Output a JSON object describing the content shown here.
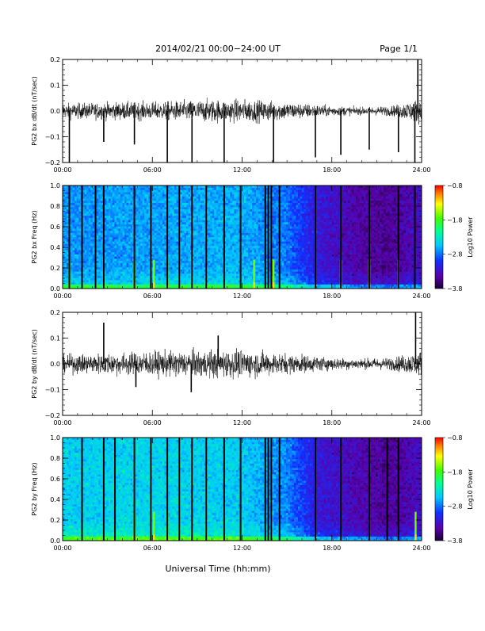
{
  "header": {
    "title": "2014/02/21   00:00−24:00  UT",
    "page": "Page 1/1"
  },
  "x_axis_title": "Universal Time (hh:mm)",
  "colors": {
    "trace": "#000000",
    "spectrogram_low": "#1a0033",
    "spectrogram_high": "#ff0000"
  },
  "chart_data": [
    {
      "type": "line",
      "id": "bx_timeseries",
      "ylabel": "PG2 bx dB/dt (nT/sec)",
      "xlim_hours": [
        0,
        24
      ],
      "ylim": [
        -0.2,
        0.2
      ],
      "xticks": [
        "00:00",
        "06:00",
        "12:00",
        "18:00",
        "24:00"
      ],
      "yticks": [
        "0.2",
        "0.1",
        "0.0",
        "−0.1",
        "−0.2"
      ],
      "ytick_values": [
        0.2,
        0.1,
        0.0,
        -0.1,
        -0.2
      ],
      "envelope_hours": [
        0,
        2,
        4,
        6,
        8,
        10,
        12,
        14,
        16,
        18,
        20,
        22,
        24
      ],
      "envelope_amplitude": [
        0.03,
        0.032,
        0.035,
        0.035,
        0.04,
        0.045,
        0.045,
        0.04,
        0.03,
        0.02,
        0.015,
        0.02,
        0.05
      ],
      "spike_hours": [
        0.45,
        2.75,
        4.8,
        7.0,
        8.65,
        10.8,
        14.1,
        16.9,
        18.6,
        20.5,
        22.45,
        23.55,
        23.75
      ],
      "spike_levels": [
        -0.2,
        -0.12,
        -0.13,
        -0.2,
        -0.2,
        -0.2,
        -0.2,
        -0.18,
        -0.17,
        -0.15,
        -0.16,
        -0.2,
        0.2
      ]
    },
    {
      "type": "heatmap",
      "id": "bx_spectrogram",
      "ylabel": "PG2 bx Freq (Hz)",
      "xlim_hours": [
        0,
        24
      ],
      "ylim": [
        0,
        1.0
      ],
      "xticks": [
        "00:00",
        "06:00",
        "12:00",
        "18:00",
        "24:00"
      ],
      "yticks": [
        "1.0",
        "0.8",
        "0.6",
        "0.4",
        "0.2",
        "0.0"
      ],
      "ytick_values": [
        1.0,
        0.8,
        0.6,
        0.4,
        0.2,
        0.0
      ],
      "colorbar": {
        "label": "Log10 Power",
        "ticks": [
          "−0.8",
          "−1.8",
          "−2.8",
          "−3.8"
        ],
        "tick_values": [
          -0.8,
          -1.8,
          -2.8,
          -3.8
        ],
        "range": [
          -3.8,
          -0.8
        ]
      },
      "gap_hours": [
        0.45,
        1.3,
        2.2,
        2.75,
        4.8,
        5.9,
        7.0,
        7.8,
        8.65,
        9.6,
        10.8,
        11.9,
        13.55,
        13.75,
        13.95,
        14.5,
        16.9,
        18.6,
        20.5,
        22.45,
        23.55
      ],
      "spike_hours": [
        0.45,
        2.75,
        4.8,
        6.1,
        7.0,
        8.65,
        10.8,
        12.8,
        14.1,
        18.6,
        20.5,
        22.45
      ],
      "background_profile_hours": [
        0,
        6,
        12,
        15,
        17,
        20,
        22,
        24
      ],
      "background_profile_power": [
        -2.7,
        -2.65,
        -2.6,
        -2.8,
        -3.2,
        -3.45,
        -3.5,
        -3.3
      ]
    },
    {
      "type": "line",
      "id": "by_timeseries",
      "ylabel": "PG2 by dB/dt (nT/sec)",
      "xlim_hours": [
        0,
        24
      ],
      "ylim": [
        -0.2,
        0.2
      ],
      "xticks": [
        "00:00",
        "06:00",
        "12:00",
        "18:00",
        "24:00"
      ],
      "yticks": [
        "0.2",
        "0.1",
        "0.0",
        "−0.1",
        "−0.2"
      ],
      "ytick_values": [
        0.2,
        0.1,
        0.0,
        -0.1,
        -0.2
      ],
      "envelope_hours": [
        0,
        2,
        4,
        6,
        8,
        10,
        12,
        14,
        16,
        18,
        20,
        22,
        24
      ],
      "envelope_amplitude": [
        0.035,
        0.04,
        0.045,
        0.05,
        0.05,
        0.055,
        0.055,
        0.045,
        0.035,
        0.025,
        0.02,
        0.025,
        0.05
      ],
      "spike_hours": [
        2.75,
        4.9,
        8.6,
        10.4,
        23.6
      ],
      "spike_levels": [
        0.16,
        -0.09,
        -0.11,
        0.11,
        0.2
      ]
    },
    {
      "type": "heatmap",
      "id": "by_spectrogram",
      "ylabel": "PG2 by Freq (Hz)",
      "xlim_hours": [
        0,
        24
      ],
      "ylim": [
        0,
        1.0
      ],
      "xticks": [
        "00:00",
        "06:00",
        "12:00",
        "18:00",
        "24:00"
      ],
      "yticks": [
        "1.0",
        "0.8",
        "0.6",
        "0.4",
        "0.2",
        "0.0"
      ],
      "ytick_values": [
        1.0,
        0.8,
        0.6,
        0.4,
        0.2,
        0.0
      ],
      "colorbar": {
        "label": "Log10 Power",
        "ticks": [
          "−0.8",
          "−1.8",
          "−2.8",
          "−3.8"
        ],
        "tick_values": [
          -0.8,
          -1.8,
          -2.8,
          -3.8
        ],
        "range": [
          -3.8,
          -0.8
        ]
      },
      "gap_hours": [
        1.3,
        2.75,
        3.5,
        4.8,
        5.9,
        7.0,
        7.8,
        8.65,
        9.6,
        10.8,
        11.9,
        13.55,
        13.75,
        13.95,
        14.5,
        16.9,
        18.6,
        20.5,
        21.7,
        22.45
      ],
      "spike_hours": [
        4.8,
        6.1,
        7.0,
        10.8,
        13.95,
        23.6
      ],
      "background_profile_hours": [
        0,
        6,
        12,
        15,
        17,
        20,
        22,
        24
      ],
      "background_profile_power": [
        -2.5,
        -2.45,
        -2.5,
        -2.75,
        -3.2,
        -3.4,
        -3.5,
        -3.3
      ]
    }
  ]
}
